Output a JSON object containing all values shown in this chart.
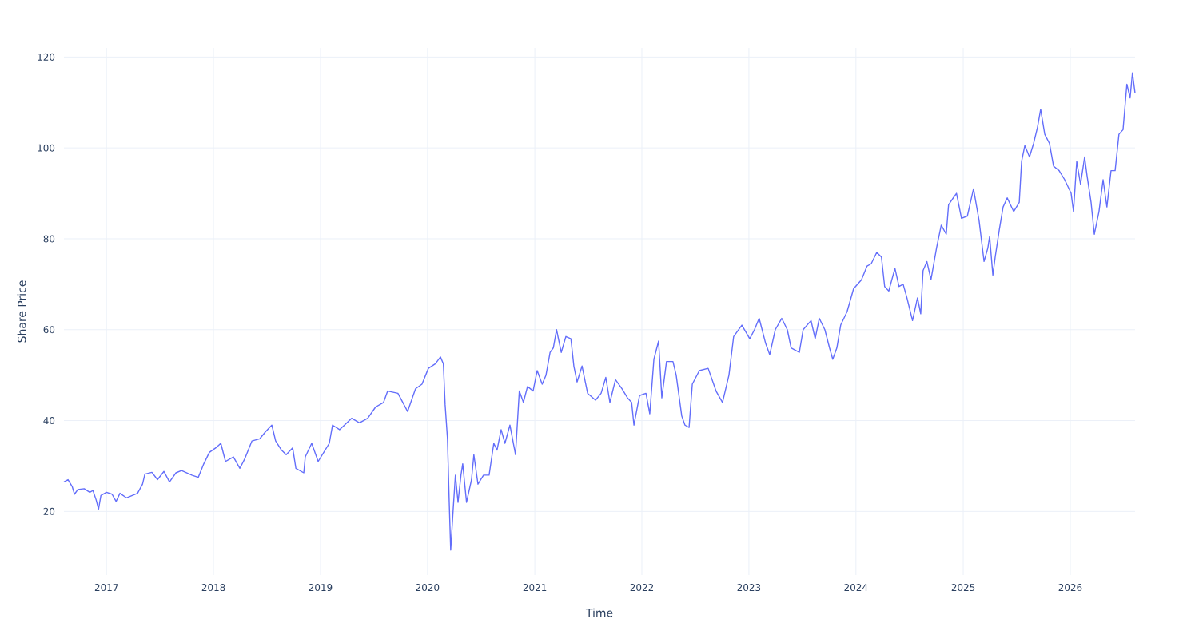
{
  "chart_data": {
    "type": "line",
    "xlabel": "Time",
    "ylabel": "Share Price",
    "x": [
      "2016-08-09",
      "2016-08-23",
      "2016-09-06",
      "2016-09-14",
      "2016-09-25",
      "2016-10-17",
      "2016-11-05",
      "2016-11-16",
      "2016-11-27",
      "2016-12-05",
      "2016-12-13",
      "2017-01-01",
      "2017-01-20",
      "2017-02-03",
      "2017-02-16",
      "2017-03-10",
      "2017-03-29",
      "2017-04-17",
      "2017-05-04",
      "2017-05-12",
      "2017-06-05",
      "2017-06-24",
      "2017-07-16",
      "2017-08-04",
      "2017-08-26",
      "2017-09-14",
      "2017-10-19",
      "2017-11-10",
      "2017-11-29",
      "2017-12-18",
      "2018-01-09",
      "2018-01-26",
      "2018-02-11",
      "2018-03-10",
      "2018-04-01",
      "2018-04-17",
      "2018-05-12",
      "2018-06-08",
      "2018-06-27",
      "2018-07-19",
      "2018-08-01",
      "2018-08-21",
      "2018-09-06",
      "2018-09-28",
      "2018-10-09",
      "2018-11-05",
      "2018-11-10",
      "2018-12-02",
      "2018-12-24",
      "2019-01-12",
      "2019-01-31",
      "2019-02-11",
      "2019-03-07",
      "2019-04-17",
      "2019-05-14",
      "2019-06-11",
      "2019-07-08",
      "2019-08-04",
      "2019-08-18",
      "2019-09-22",
      "2019-10-25",
      "2019-11-21",
      "2019-12-13",
      "2020-01-04",
      "2020-01-28",
      "2020-02-14",
      "2020-02-24",
      "2020-03-01",
      "2020-03-09",
      "2020-03-15",
      "2020-03-20",
      "2020-03-28",
      "2020-04-05",
      "2020-04-14",
      "2020-04-24",
      "2020-04-30",
      "2020-05-13",
      "2020-05-30",
      "2020-06-07",
      "2020-06-21",
      "2020-07-10",
      "2020-07-29",
      "2020-08-14",
      "2020-08-25",
      "2020-09-08",
      "2020-09-21",
      "2020-10-08",
      "2020-10-27",
      "2020-11-09",
      "2020-11-23",
      "2020-12-07",
      "2020-12-26",
      "2021-01-09",
      "2021-01-26",
      "2021-02-08",
      "2021-02-22",
      "2021-03-05",
      "2021-03-16",
      "2021-04-01",
      "2021-04-17",
      "2021-05-04",
      "2021-05-14",
      "2021-05-25",
      "2021-06-11",
      "2021-06-30",
      "2021-07-27",
      "2021-08-15",
      "2021-08-31",
      "2021-09-14",
      "2021-10-03",
      "2021-10-25",
      "2021-11-13",
      "2021-11-27",
      "2021-12-05",
      "2021-12-24",
      "2022-01-15",
      "2022-01-28",
      "2022-02-11",
      "2022-02-27",
      "2022-03-10",
      "2022-03-26",
      "2022-04-17",
      "2022-04-28",
      "2022-05-17",
      "2022-05-28",
      "2022-06-11",
      "2022-06-22",
      "2022-07-16",
      "2022-08-15",
      "2022-09-11",
      "2022-10-03",
      "2022-10-25",
      "2022-11-10",
      "2022-12-08",
      "2023-01-04",
      "2023-01-20",
      "2023-02-05",
      "2023-02-27",
      "2023-03-13",
      "2023-04-01",
      "2023-04-23",
      "2023-05-12",
      "2023-05-25",
      "2023-06-22",
      "2023-07-05",
      "2023-08-01",
      "2023-08-15",
      "2023-08-29",
      "2023-09-17",
      "2023-10-03",
      "2023-10-14",
      "2023-10-28",
      "2023-11-10",
      "2023-12-02",
      "2023-12-24",
      "2024-01-20",
      "2024-02-08",
      "2024-02-22",
      "2024-03-12",
      "2024-03-28",
      "2024-04-08",
      "2024-04-22",
      "2024-05-13",
      "2024-05-27",
      "2024-06-10",
      "2024-06-23",
      "2024-07-12",
      "2024-07-29",
      "2024-08-09",
      "2024-08-17",
      "2024-08-30",
      "2024-09-13",
      "2024-10-02",
      "2024-10-18",
      "2024-11-04",
      "2024-11-12",
      "2024-11-28",
      "2024-12-09",
      "2024-12-26",
      "2025-01-15",
      "2025-02-05",
      "2025-02-24",
      "2025-03-13",
      "2025-03-26",
      "2025-04-01",
      "2025-04-12",
      "2025-04-20",
      "2025-05-04",
      "2025-05-17",
      "2025-05-31",
      "2025-06-22",
      "2025-07-11",
      "2025-07-19",
      "2025-07-30",
      "2025-08-15",
      "2025-08-29",
      "2025-09-11",
      "2025-09-22",
      "2025-10-06",
      "2025-10-22",
      "2025-11-05",
      "2025-11-24",
      "2025-12-13",
      "2026-01-04",
      "2026-01-12",
      "2026-01-23",
      "2026-02-05",
      "2026-02-19",
      "2026-02-27",
      "2026-03-13",
      "2026-03-24",
      "2026-04-09",
      "2026-04-23",
      "2026-05-06",
      "2026-05-20",
      "2026-06-03",
      "2026-06-16",
      "2026-06-30",
      "2026-07-13",
      "2026-07-24",
      "2026-08-01",
      "2026-08-10"
    ],
    "series": [
      {
        "color": "#636efa",
        "values": [
          26.5,
          27,
          25.5,
          23.8,
          24.8,
          25,
          24.2,
          24.6,
          22.5,
          20.5,
          23.5,
          24.2,
          23.8,
          22.2,
          24,
          23,
          23.5,
          24,
          26,
          28.2,
          28.6,
          27,
          28.8,
          26.5,
          28.5,
          29,
          28,
          27.5,
          30.5,
          33,
          34,
          35,
          31,
          32,
          29.5,
          31.5,
          35.5,
          36,
          37.5,
          39,
          35.5,
          33.5,
          32.5,
          34,
          29.5,
          28.5,
          32,
          35,
          31,
          33,
          35,
          39,
          38,
          40.5,
          39.5,
          40.5,
          43,
          44,
          46.5,
          46,
          42,
          47,
          48,
          51.5,
          52.5,
          54,
          52.5,
          43.5,
          36,
          22,
          11.5,
          20,
          28,
          22,
          28,
          30.5,
          22,
          27,
          32.5,
          26,
          28,
          28,
          35,
          33.5,
          38,
          35,
          39,
          32.5,
          46.5,
          44,
          47.5,
          46.5,
          51,
          48,
          50,
          55,
          56,
          60,
          55,
          58.5,
          58,
          52,
          48.5,
          52,
          46,
          44.5,
          46,
          49.5,
          44,
          49,
          47,
          45,
          44,
          39,
          45.5,
          46,
          41.5,
          53.5,
          57.5,
          45,
          53,
          53,
          50,
          41,
          39,
          38.5,
          48,
          51,
          51.5,
          46.5,
          44,
          50,
          58.5,
          61,
          58,
          60,
          62.5,
          57,
          54.5,
          60,
          62.5,
          60,
          56,
          55,
          60,
          62,
          58,
          62.5,
          60,
          56,
          53.5,
          56,
          61,
          64,
          69,
          71,
          74,
          74.5,
          77,
          76,
          69.5,
          68.5,
          73.5,
          69.5,
          70,
          67,
          62,
          67,
          63.5,
          73,
          75,
          71,
          78,
          83,
          81,
          87.5,
          89,
          90,
          84.5,
          85,
          91,
          84,
          75,
          78,
          80.5,
          72,
          76,
          82,
          87,
          89,
          86,
          88,
          97,
          100.5,
          98,
          101,
          104.5,
          108.5,
          103,
          101,
          96,
          95,
          93,
          90,
          86,
          97,
          92,
          98,
          94,
          88,
          81,
          86,
          93,
          87,
          95,
          95,
          103,
          104,
          114,
          111,
          116.5,
          112
        ]
      }
    ],
    "xlim": [
      "2016-08-09",
      "2026-08-10"
    ],
    "xticks": [
      {
        "value": "2017-01-01",
        "label": "2017"
      },
      {
        "value": "2018-01-01",
        "label": "2018"
      },
      {
        "value": "2019-01-01",
        "label": "2019"
      },
      {
        "value": "2020-01-01",
        "label": "2020"
      },
      {
        "value": "2021-01-01",
        "label": "2021"
      },
      {
        "value": "2022-01-01",
        "label": "2022"
      },
      {
        "value": "2023-01-01",
        "label": "2023"
      },
      {
        "value": "2024-01-01",
        "label": "2024"
      },
      {
        "value": "2025-01-01",
        "label": "2025"
      },
      {
        "value": "2026-01-01",
        "label": "2026"
      }
    ],
    "ylim": [
      6,
      122
    ],
    "yticks": [
      20,
      40,
      60,
      80,
      100,
      120
    ],
    "grid": true,
    "marker": "none",
    "line_style": "solid"
  }
}
